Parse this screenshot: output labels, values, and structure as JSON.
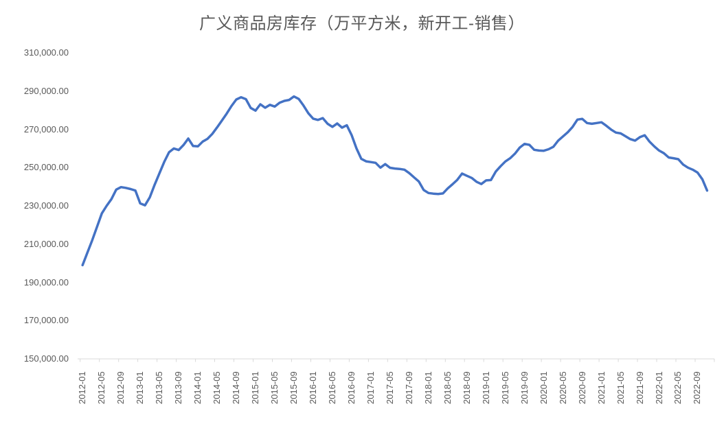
{
  "title": "广义商品房库存（万平方米，新开工-销售）",
  "colors": {
    "line": "#4472C4",
    "axis_text": "#595959",
    "axis_line": "#D9D9D9",
    "title_text": "#595959",
    "background": "#FFFFFF"
  },
  "chart_data": {
    "type": "line",
    "title": "广义商品房库存（万平方米，新开工-销售）",
    "series_name": "广义商品房库存",
    "unit": "万平方米",
    "grid": false,
    "legend": "none",
    "y_axis": {
      "min": 150000,
      "max": 310000,
      "step": 20000,
      "tick_labels": [
        "310,000.00",
        "290,000.00",
        "270,000.00",
        "250,000.00",
        "230,000.00",
        "210,000.00",
        "190,000.00",
        "170,000.00",
        "150,000.00"
      ]
    },
    "x_tick_labels": [
      "2012-01",
      "2012-05",
      "2012-09",
      "2013-01",
      "2013-05",
      "2013-09",
      "2014-01",
      "2014-05",
      "2014-09",
      "2015-01",
      "2015-05",
      "2015-09",
      "2016-01",
      "2016-05",
      "2016-09",
      "2017-01",
      "2017-05",
      "2017-09",
      "2018-01",
      "2018-05",
      "2018-09",
      "2019-01",
      "2019-05",
      "2019-09",
      "2020-01",
      "2020-05",
      "2020-09",
      "2021-01",
      "2021-05",
      "2021-09",
      "2022-01",
      "2022-05",
      "2022-09"
    ],
    "x": [
      "2012-01",
      "2012-02",
      "2012-03",
      "2012-04",
      "2012-05",
      "2012-06",
      "2012-07",
      "2012-08",
      "2012-09",
      "2012-10",
      "2012-11",
      "2012-12",
      "2013-01",
      "2013-02",
      "2013-03",
      "2013-04",
      "2013-05",
      "2013-06",
      "2013-07",
      "2013-08",
      "2013-09",
      "2013-10",
      "2013-11",
      "2013-12",
      "2014-01",
      "2014-02",
      "2014-03",
      "2014-04",
      "2014-05",
      "2014-06",
      "2014-07",
      "2014-08",
      "2014-09",
      "2014-10",
      "2014-11",
      "2014-12",
      "2015-01",
      "2015-02",
      "2015-03",
      "2015-04",
      "2015-05",
      "2015-06",
      "2015-07",
      "2015-08",
      "2015-09",
      "2015-10",
      "2015-11",
      "2015-12",
      "2016-01",
      "2016-02",
      "2016-03",
      "2016-04",
      "2016-05",
      "2016-06",
      "2016-07",
      "2016-08",
      "2016-09",
      "2016-10",
      "2016-11",
      "2016-12",
      "2017-01",
      "2017-02",
      "2017-03",
      "2017-04",
      "2017-05",
      "2017-06",
      "2017-07",
      "2017-08",
      "2017-09",
      "2017-10",
      "2017-11",
      "2017-12",
      "2018-01",
      "2018-02",
      "2018-03",
      "2018-04",
      "2018-05",
      "2018-06",
      "2018-07",
      "2018-08",
      "2018-09",
      "2018-10",
      "2018-11",
      "2018-12",
      "2019-01",
      "2019-02",
      "2019-03",
      "2019-04",
      "2019-05",
      "2019-06",
      "2019-07",
      "2019-08",
      "2019-09",
      "2019-10",
      "2019-11",
      "2019-12",
      "2020-01",
      "2020-02",
      "2020-03",
      "2020-04",
      "2020-05",
      "2020-06",
      "2020-07",
      "2020-08",
      "2020-09",
      "2020-10",
      "2020-11",
      "2020-12",
      "2021-01",
      "2021-02",
      "2021-03",
      "2021-04",
      "2021-05",
      "2021-06",
      "2021-07",
      "2021-08",
      "2021-09",
      "2021-10",
      "2021-11",
      "2021-12",
      "2022-01",
      "2022-02",
      "2022-03",
      "2022-04",
      "2022-05",
      "2022-06",
      "2022-07",
      "2022-08",
      "2022-09",
      "2022-10",
      "2022-11"
    ],
    "values": [
      199000,
      205500,
      212000,
      219000,
      226000,
      230000,
      233500,
      238500,
      239800,
      239400,
      238800,
      238000,
      231300,
      230300,
      234500,
      241000,
      247000,
      253000,
      258000,
      260000,
      259200,
      261800,
      265200,
      261300,
      261100,
      263600,
      265000,
      267600,
      271000,
      274600,
      278200,
      282200,
      285600,
      286800,
      285800,
      281200,
      279800,
      283100,
      281300,
      282800,
      281900,
      283900,
      284900,
      285400,
      287200,
      285900,
      282400,
      278400,
      275600,
      274900,
      275900,
      272900,
      271300,
      273100,
      270900,
      272100,
      267000,
      260100,
      254600,
      253300,
      252900,
      252500,
      250000,
      251800,
      249900,
      249500,
      249300,
      248900,
      247100,
      244900,
      242700,
      238300,
      236700,
      236400,
      236200,
      236500,
      239100,
      241300,
      243600,
      246900,
      245700,
      244600,
      242600,
      241400,
      243300,
      243500,
      247900,
      250700,
      253200,
      254900,
      257300,
      260500,
      262400,
      261900,
      259300,
      258900,
      258800,
      259600,
      260900,
      264100,
      266300,
      268500,
      271300,
      275100,
      275500,
      273300,
      272900,
      273300,
      273700,
      271900,
      269900,
      268300,
      267900,
      266400,
      264900,
      264100,
      265900,
      266900,
      263600,
      261100,
      258900,
      257500,
      255300,
      254900,
      254400,
      251600,
      250000,
      248900,
      247400,
      243900,
      238000
    ]
  }
}
